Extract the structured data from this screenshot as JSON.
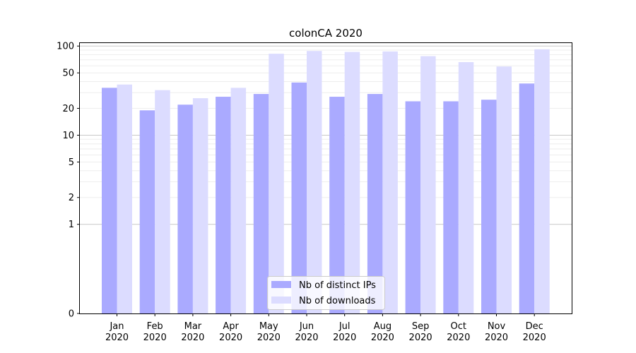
{
  "chart_data": {
    "type": "bar",
    "title": "colonCA 2020",
    "xlabel": "",
    "ylabel": "",
    "yscale": "symlog",
    "ylim": [
      0,
      110
    ],
    "yticks": [
      0,
      1,
      2,
      5,
      10,
      20,
      50,
      100
    ],
    "grid": true,
    "legend_position": "bottom-center",
    "categories": [
      {
        "month": "Jan",
        "year": "2020"
      },
      {
        "month": "Feb",
        "year": "2020"
      },
      {
        "month": "Mar",
        "year": "2020"
      },
      {
        "month": "Apr",
        "year": "2020"
      },
      {
        "month": "May",
        "year": "2020"
      },
      {
        "month": "Jun",
        "year": "2020"
      },
      {
        "month": "Jul",
        "year": "2020"
      },
      {
        "month": "Aug",
        "year": "2020"
      },
      {
        "month": "Sep",
        "year": "2020"
      },
      {
        "month": "Oct",
        "year": "2020"
      },
      {
        "month": "Nov",
        "year": "2020"
      },
      {
        "month": "Dec",
        "year": "2020"
      }
    ],
    "series": [
      {
        "name": "Nb of distinct IPs",
        "color": "#aaaaff",
        "values": [
          34,
          19,
          22,
          27,
          29,
          39,
          27,
          29,
          24,
          24,
          25,
          38
        ]
      },
      {
        "name": "Nb of downloads",
        "color": "#dcdcff",
        "values": [
          37,
          32,
          26,
          34,
          82,
          88,
          86,
          87,
          77,
          66,
          59,
          92
        ]
      }
    ]
  }
}
